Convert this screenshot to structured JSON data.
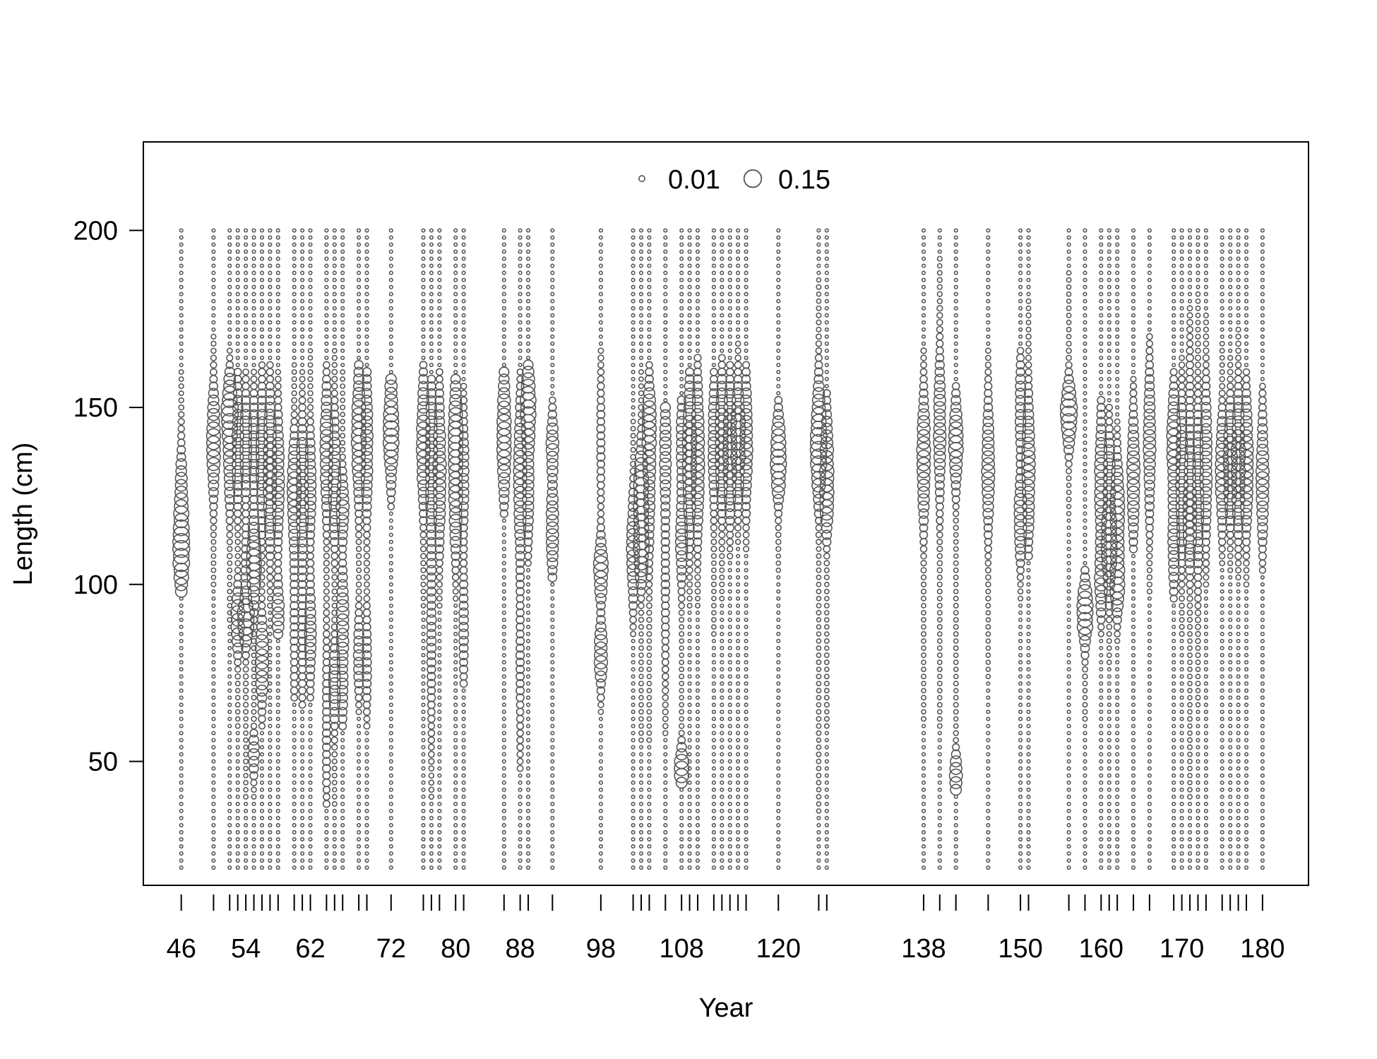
{
  "chart_data": {
    "type": "scatter",
    "subtype": "bubble",
    "xlabel": "Year",
    "ylabel": "Length (cm)",
    "xlim": [
      41.3,
      185.7
    ],
    "ylim": [
      15,
      225
    ],
    "x_tick_labels": [
      "46",
      "54",
      "62",
      "72",
      "80",
      "88",
      "98",
      "108",
      "120",
      "138",
      "150",
      "160",
      "170",
      "180"
    ],
    "x_ticks_all": [
      46,
      50,
      52,
      53,
      54,
      55,
      56,
      57,
      58,
      60,
      61,
      62,
      64,
      65,
      66,
      68,
      69,
      72,
      76,
      77,
      78,
      80,
      81,
      86,
      88,
      89,
      92,
      98,
      102,
      103,
      104,
      106,
      108,
      109,
      110,
      112,
      113,
      114,
      115,
      116,
      120,
      125,
      126,
      138,
      140,
      142,
      146,
      150,
      151,
      156,
      158,
      160,
      161,
      162,
      164,
      166,
      169,
      170,
      171,
      172,
      173,
      175,
      176,
      177,
      178,
      180
    ],
    "y_ticks": [
      50,
      100,
      150,
      200
    ],
    "grid": false,
    "legend": {
      "position": "top-center",
      "entries": [
        {
          "label": "0.01",
          "value": 0.01
        },
        {
          "label": "0.15",
          "value": 0.15
        }
      ]
    },
    "colors": {
      "marker_stroke": "#555555",
      "axis": "#000000"
    },
    "length_bins": [
      20,
      200,
      2
    ],
    "columns": [
      {
        "year": 46,
        "peaks": [
          [
            118,
            12,
            0.09
          ],
          [
            106,
            6,
            0.06
          ]
        ],
        "lo": 98,
        "hi": 160
      },
      {
        "year": 50,
        "peaks": [
          [
            140,
            10,
            0.08
          ]
        ],
        "lo": 100,
        "hi": 170
      },
      {
        "year": 52,
        "peaks": [
          [
            150,
            6,
            0.1
          ],
          [
            136,
            10,
            0.06
          ]
        ],
        "lo": 90,
        "hi": 166
      },
      {
        "year": 53,
        "peaks": [
          [
            140,
            12,
            0.05
          ],
          [
            90,
            6,
            0.08
          ]
        ],
        "lo": 60,
        "hi": 160
      },
      {
        "year": 54,
        "peaks": [
          [
            140,
            10,
            0.05
          ],
          [
            90,
            4,
            0.11
          ],
          [
            100,
            12,
            0.03
          ]
        ],
        "lo": 40,
        "hi": 160
      },
      {
        "year": 55,
        "peaks": [
          [
            106,
            8,
            0.09
          ],
          [
            52,
            4,
            0.05
          ],
          [
            140,
            10,
            0.04
          ]
        ],
        "lo": 40,
        "hi": 160
      },
      {
        "year": 56,
        "peaks": [
          [
            136,
            14,
            0.05
          ],
          [
            78,
            8,
            0.08
          ]
        ],
        "lo": 60,
        "hi": 162
      },
      {
        "year": 57,
        "peaks": [
          [
            132,
            14,
            0.08
          ]
        ],
        "lo": 94,
        "hi": 162
      },
      {
        "year": 58,
        "peaks": [
          [
            130,
            12,
            0.06
          ],
          [
            92,
            6,
            0.06
          ]
        ],
        "lo": 86,
        "hi": 160
      },
      {
        "year": 60,
        "peaks": [
          [
            126,
            10,
            0.08
          ],
          [
            90,
            20,
            0.02
          ]
        ],
        "lo": 68,
        "hi": 162
      },
      {
        "year": 61,
        "peaks": [
          [
            128,
            12,
            0.06
          ],
          [
            90,
            20,
            0.02
          ]
        ],
        "lo": 66,
        "hi": 160
      },
      {
        "year": 62,
        "peaks": [
          [
            128,
            10,
            0.05
          ],
          [
            86,
            10,
            0.05
          ]
        ],
        "lo": 68,
        "hi": 166
      },
      {
        "year": 64,
        "peaks": [
          [
            138,
            12,
            0.07
          ],
          [
            60,
            20,
            0.02
          ]
        ],
        "lo": 38,
        "hi": 162
      },
      {
        "year": 65,
        "peaks": [
          [
            130,
            12,
            0.06
          ],
          [
            72,
            8,
            0.05
          ]
        ],
        "lo": 38,
        "hi": 166
      },
      {
        "year": 66,
        "peaks": [
          [
            122,
            6,
            0.07
          ],
          [
            90,
            10,
            0.06
          ],
          [
            68,
            8,
            0.03
          ]
        ],
        "lo": 60,
        "hi": 160
      },
      {
        "year": 68,
        "peaks": [
          [
            142,
            12,
            0.09
          ],
          [
            80,
            8,
            0.04
          ]
        ],
        "lo": 64,
        "hi": 162
      },
      {
        "year": 69,
        "peaks": [
          [
            140,
            14,
            0.06
          ],
          [
            78,
            10,
            0.03
          ]
        ],
        "lo": 60,
        "hi": 160
      },
      {
        "year": 72,
        "peaks": [
          [
            144,
            10,
            0.11
          ]
        ],
        "lo": 122,
        "hi": 158
      },
      {
        "year": 76,
        "peaks": [
          [
            140,
            12,
            0.08
          ]
        ],
        "lo": 94,
        "hi": 162
      },
      {
        "year": 77,
        "peaks": [
          [
            136,
            14,
            0.06
          ],
          [
            90,
            20,
            0.03
          ]
        ],
        "lo": 40,
        "hi": 158
      },
      {
        "year": 78,
        "peaks": [
          [
            132,
            14,
            0.07
          ]
        ],
        "lo": 94,
        "hi": 160
      },
      {
        "year": 80,
        "peaks": [
          [
            140,
            12,
            0.09
          ],
          [
            118,
            8,
            0.05
          ]
        ],
        "lo": 96,
        "hi": 158
      },
      {
        "year": 81,
        "peaks": [
          [
            132,
            12,
            0.04
          ],
          [
            88,
            12,
            0.03
          ]
        ],
        "lo": 72,
        "hi": 156
      },
      {
        "year": 86,
        "peaks": [
          [
            142,
            12,
            0.09
          ]
        ],
        "lo": 120,
        "hi": 160
      },
      {
        "year": 88,
        "peaks": [
          [
            130,
            14,
            0.07
          ],
          [
            80,
            20,
            0.02
          ]
        ],
        "lo": 48,
        "hi": 160
      },
      {
        "year": 89,
        "peaks": [
          [
            150,
            8,
            0.1
          ],
          [
            126,
            10,
            0.05
          ]
        ],
        "lo": 106,
        "hi": 162
      },
      {
        "year": 92,
        "peaks": [
          [
            140,
            6,
            0.06
          ],
          [
            116,
            10,
            0.06
          ]
        ],
        "lo": 102,
        "hi": 152
      },
      {
        "year": 98,
        "peaks": [
          [
            104,
            6,
            0.09
          ],
          [
            80,
            6,
            0.08
          ],
          [
            140,
            14,
            0.02
          ]
        ],
        "lo": 64,
        "hi": 166
      },
      {
        "year": 102,
        "peaks": [
          [
            110,
            10,
            0.07
          ]
        ],
        "lo": 86,
        "hi": 146
      },
      {
        "year": 103,
        "peaks": [
          [
            124,
            10,
            0.1
          ],
          [
            108,
            6,
            0.07
          ]
        ],
        "lo": 56,
        "hi": 160
      },
      {
        "year": 104,
        "peaks": [
          [
            146,
            8,
            0.06
          ],
          [
            128,
            14,
            0.05
          ]
        ],
        "lo": 56,
        "hi": 162
      },
      {
        "year": 106,
        "peaks": [
          [
            138,
            12,
            0.05
          ],
          [
            100,
            20,
            0.02
          ]
        ],
        "lo": 58,
        "hi": 150
      },
      {
        "year": 108,
        "peaks": [
          [
            112,
            8,
            0.06
          ],
          [
            48,
            4,
            0.09
          ],
          [
            140,
            10,
            0.04
          ]
        ],
        "lo": 44,
        "hi": 152
      },
      {
        "year": 109,
        "peaks": [
          [
            136,
            14,
            0.09
          ]
        ],
        "lo": 94,
        "hi": 160
      },
      {
        "year": 110,
        "peaks": [
          [
            136,
            14,
            0.08
          ]
        ],
        "lo": 94,
        "hi": 164
      },
      {
        "year": 112,
        "peaks": [
          [
            140,
            12,
            0.05
          ]
        ],
        "lo": 86,
        "hi": 160
      },
      {
        "year": 113,
        "peaks": [
          [
            140,
            12,
            0.08
          ]
        ],
        "lo": 96,
        "hi": 164
      },
      {
        "year": 114,
        "peaks": [
          [
            138,
            12,
            0.09
          ]
        ],
        "lo": 108,
        "hi": 162
      },
      {
        "year": 115,
        "peaks": [
          [
            140,
            10,
            0.1
          ]
        ],
        "lo": 112,
        "hi": 168
      },
      {
        "year": 116,
        "peaks": [
          [
            140,
            12,
            0.07
          ]
        ],
        "lo": 110,
        "hi": 162
      },
      {
        "year": 120,
        "peaks": [
          [
            136,
            8,
            0.12
          ]
        ],
        "lo": 104,
        "hi": 152
      },
      {
        "year": 125,
        "peaks": [
          [
            144,
            10,
            0.08
          ],
          [
            134,
            8,
            0.07
          ]
        ],
        "lo": 36,
        "hi": 186
      },
      {
        "year": 126,
        "peaks": [
          [
            136,
            10,
            0.07
          ],
          [
            122,
            6,
            0.06
          ]
        ],
        "lo": 60,
        "hi": 154
      },
      {
        "year": 138,
        "peaks": [
          [
            136,
            12,
            0.08
          ]
        ],
        "lo": 62,
        "hi": 166
      },
      {
        "year": 140,
        "peaks": [
          [
            144,
            14,
            0.06
          ]
        ],
        "lo": 60,
        "hi": 192
      },
      {
        "year": 142,
        "peaks": [
          [
            140,
            8,
            0.09
          ],
          [
            46,
            4,
            0.07
          ]
        ],
        "lo": 42,
        "hi": 156
      },
      {
        "year": 146,
        "peaks": [
          [
            134,
            12,
            0.07
          ]
        ],
        "lo": 74,
        "hi": 166
      },
      {
        "year": 150,
        "peaks": [
          [
            118,
            8,
            0.07
          ],
          [
            150,
            10,
            0.04
          ]
        ],
        "lo": 96,
        "hi": 166
      },
      {
        "year": 151,
        "peaks": [
          [
            132,
            14,
            0.07
          ]
        ],
        "lo": 108,
        "hi": 180
      },
      {
        "year": 156,
        "peaks": [
          [
            148,
            6,
            0.13
          ]
        ],
        "lo": 120,
        "hi": 188
      },
      {
        "year": 158,
        "peaks": [
          [
            92,
            6,
            0.12
          ]
        ],
        "lo": 62,
        "hi": 104
      },
      {
        "year": 160,
        "peaks": [
          [
            128,
            14,
            0.07
          ],
          [
            100,
            6,
            0.06
          ]
        ],
        "lo": 86,
        "hi": 152
      },
      {
        "year": 161,
        "peaks": [
          [
            110,
            8,
            0.11
          ],
          [
            130,
            10,
            0.05
          ]
        ],
        "lo": 78,
        "hi": 150
      },
      {
        "year": 162,
        "peaks": [
          [
            120,
            10,
            0.09
          ],
          [
            100,
            6,
            0.08
          ]
        ],
        "lo": 84,
        "hi": 146
      },
      {
        "year": 164,
        "peaks": [
          [
            130,
            12,
            0.07
          ]
        ],
        "lo": 110,
        "hi": 158
      },
      {
        "year": 166,
        "peaks": [
          [
            140,
            14,
            0.06
          ]
        ],
        "lo": 98,
        "hi": 170
      },
      {
        "year": 169,
        "peaks": [
          [
            140,
            10,
            0.08
          ],
          [
            112,
            10,
            0.05
          ]
        ],
        "lo": 96,
        "hi": 160
      },
      {
        "year": 170,
        "peaks": [
          [
            130,
            14,
            0.06
          ]
        ],
        "lo": 86,
        "hi": 164
      },
      {
        "year": 171,
        "peaks": [
          [
            120,
            10,
            0.08
          ],
          [
            150,
            14,
            0.02
          ]
        ],
        "lo": 40,
        "hi": 178
      },
      {
        "year": 172,
        "peaks": [
          [
            126,
            16,
            0.05
          ]
        ],
        "lo": 66,
        "hi": 182
      },
      {
        "year": 173,
        "peaks": [
          [
            134,
            14,
            0.06
          ]
        ],
        "lo": 100,
        "hi": 176
      },
      {
        "year": 175,
        "peaks": [
          [
            132,
            10,
            0.08
          ]
        ],
        "lo": 106,
        "hi": 168
      },
      {
        "year": 176,
        "peaks": [
          [
            134,
            10,
            0.09
          ]
        ],
        "lo": 104,
        "hi": 164
      },
      {
        "year": 177,
        "peaks": [
          [
            134,
            12,
            0.09
          ]
        ],
        "lo": 102,
        "hi": 172
      },
      {
        "year": 178,
        "peaks": [
          [
            134,
            12,
            0.08
          ]
        ],
        "lo": 100,
        "hi": 160
      },
      {
        "year": 180,
        "peaks": [
          [
            130,
            12,
            0.07
          ]
        ],
        "lo": 104,
        "hi": 156
      }
    ]
  }
}
